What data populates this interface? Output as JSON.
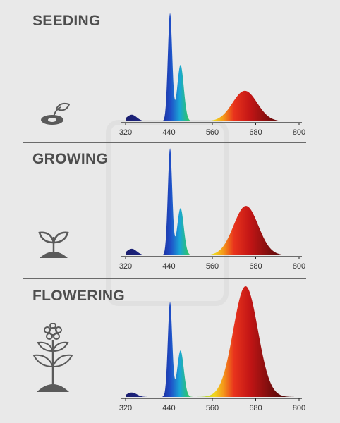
{
  "panels": [
    {
      "title": "SEEDING",
      "icon": "seedling-sprout-icon",
      "chart_data": {
        "type": "area",
        "x_ticks": [
          320,
          440,
          560,
          680,
          800
        ],
        "xlim": [
          320,
          800
        ],
        "ylim": [
          0,
          1
        ],
        "peaks": [
          {
            "center": 337,
            "height": 0.06,
            "width": 14
          },
          {
            "center": 443,
            "height": 1.0,
            "width": 6
          },
          {
            "center": 472,
            "height": 0.52,
            "width": 9
          },
          {
            "center": 650,
            "height": 0.28,
            "width": 34
          }
        ]
      }
    },
    {
      "title": "GROWING",
      "icon": "young-plant-icon",
      "chart_data": {
        "type": "area",
        "x_ticks": [
          320,
          440,
          560,
          680,
          800
        ],
        "xlim": [
          320,
          800
        ],
        "ylim": [
          0,
          1
        ],
        "peaks": [
          {
            "center": 337,
            "height": 0.06,
            "width": 14
          },
          {
            "center": 443,
            "height": 1.0,
            "width": 6
          },
          {
            "center": 472,
            "height": 0.44,
            "width": 9
          },
          {
            "center": 653,
            "height": 0.46,
            "width": 34
          }
        ]
      }
    },
    {
      "title": "FLOWERING",
      "icon": "flowering-plant-icon",
      "chart_data": {
        "type": "area",
        "x_ticks": [
          320,
          440,
          560,
          680,
          800
        ],
        "xlim": [
          320,
          800
        ],
        "ylim": [
          0,
          1
        ],
        "peaks": [
          {
            "center": 337,
            "height": 0.04,
            "width": 14
          },
          {
            "center": 443,
            "height": 0.86,
            "width": 6
          },
          {
            "center": 472,
            "height": 0.42,
            "width": 9
          },
          {
            "center": 652,
            "height": 1.0,
            "width": 34
          }
        ]
      }
    }
  ]
}
